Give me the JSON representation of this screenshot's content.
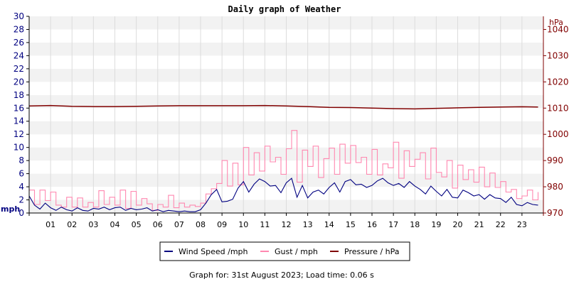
{
  "chart_data": {
    "type": "line",
    "title": "Daily graph of Weather",
    "left_axis": {
      "unit_label": "mph",
      "ylim": [
        0,
        30
      ],
      "ticks": [
        "0",
        "2",
        "4",
        "6",
        "8",
        "10",
        "12",
        "14",
        "16",
        "18",
        "20",
        "22",
        "24",
        "26",
        "28",
        "30"
      ],
      "color": "#000080"
    },
    "right_axis": {
      "unit_label": "hPa",
      "ylim": [
        970,
        1045
      ],
      "ticks": [
        "970",
        "980",
        "990",
        "1000",
        "1010",
        "1020",
        "1030",
        "1040"
      ],
      "color": "#800000"
    },
    "x_tick_labels": [
      "01",
      "02",
      "03",
      "04",
      "05",
      "06",
      "07",
      "08",
      "09",
      "10",
      "11",
      "12",
      "13",
      "14",
      "15",
      "16",
      "17",
      "18",
      "19",
      "20",
      "21",
      "22",
      "23"
    ],
    "xlim": [
      0,
      24
    ],
    "grid": true,
    "series": [
      {
        "name": "Wind Speed /mph",
        "axis": "left",
        "color": "#000080",
        "x": [
          0,
          0.25,
          0.5,
          0.75,
          1,
          1.25,
          1.5,
          1.75,
          2,
          2.25,
          2.5,
          2.75,
          3,
          3.25,
          3.5,
          3.75,
          4,
          4.25,
          4.5,
          4.75,
          5,
          5.25,
          5.5,
          5.75,
          6,
          6.25,
          6.5,
          6.75,
          7,
          7.25,
          7.5,
          7.75,
          8,
          8.25,
          8.5,
          8.75,
          9,
          9.25,
          9.5,
          9.75,
          10,
          10.25,
          10.5,
          10.75,
          11,
          11.25,
          11.5,
          11.75,
          12,
          12.25,
          12.5,
          12.75,
          13,
          13.25,
          13.5,
          13.75,
          14,
          14.25,
          14.5,
          14.75,
          15,
          15.25,
          15.5,
          15.75,
          16,
          16.25,
          16.5,
          16.75,
          17,
          17.25,
          17.5,
          17.75,
          18,
          18.25,
          18.5,
          18.75,
          19,
          19.25,
          19.5,
          19.75,
          20,
          20.25,
          20.5,
          20.75,
          21,
          21.25,
          21.5,
          21.75,
          22,
          22.25,
          22.5,
          22.75,
          23,
          23.25,
          23.5,
          23.75
        ],
        "values": [
          2.6,
          1.2,
          0.6,
          1.5,
          0.8,
          0.4,
          0.9,
          0.5,
          0.3,
          0.8,
          0.4,
          0.3,
          0.7,
          0.6,
          0.9,
          0.5,
          0.8,
          0.9,
          0.4,
          0.7,
          0.5,
          0.6,
          0.8,
          0.3,
          0.5,
          0.2,
          0.4,
          0.3,
          0.2,
          0.3,
          0.2,
          0.2,
          0.5,
          1.5,
          2.8,
          3.6,
          1.7,
          1.8,
          2.1,
          3.8,
          4.8,
          3.2,
          4.4,
          5.2,
          4.8,
          4.1,
          4.2,
          3.1,
          4.6,
          5.3,
          2.4,
          4.2,
          2.3,
          3.2,
          3.5,
          2.9,
          3.9,
          4.6,
          3.2,
          4.8,
          5.1,
          4.3,
          4.4,
          3.9,
          4.2,
          4.9,
          5.3,
          4.6,
          4.2,
          4.5,
          3.9,
          4.8,
          4.1,
          3.6,
          2.9,
          4.1,
          3.3,
          2.6,
          3.6,
          2.4,
          2.3,
          3.5,
          3.1,
          2.6,
          2.8,
          2.1,
          2.8,
          2.3,
          2.2,
          1.6,
          2.4,
          1.3,
          1.1,
          1.6,
          1.3,
          1.2
        ]
      },
      {
        "name": "Gust / mph",
        "axis": "left",
        "color": "#ff88b0",
        "x": [
          0,
          0.25,
          0.5,
          0.75,
          1,
          1.25,
          1.5,
          1.75,
          2,
          2.25,
          2.5,
          2.75,
          3,
          3.25,
          3.5,
          3.75,
          4,
          4.25,
          4.5,
          4.75,
          5,
          5.25,
          5.5,
          5.75,
          6,
          6.25,
          6.5,
          6.75,
          7,
          7.25,
          7.5,
          7.75,
          8,
          8.25,
          8.5,
          8.75,
          9,
          9.25,
          9.5,
          9.75,
          10,
          10.25,
          10.5,
          10.75,
          11,
          11.25,
          11.5,
          11.75,
          12,
          12.25,
          12.5,
          12.75,
          13,
          13.25,
          13.5,
          13.75,
          14,
          14.25,
          14.5,
          14.75,
          15,
          15.25,
          15.5,
          15.75,
          16,
          16.25,
          16.5,
          16.75,
          17,
          17.25,
          17.5,
          17.75,
          18,
          18.25,
          18.5,
          18.75,
          19,
          19.25,
          19.5,
          19.75,
          20,
          20.25,
          20.5,
          20.75,
          21,
          21.25,
          21.5,
          21.75,
          22,
          22.25,
          22.5,
          22.75,
          23,
          23.25,
          23.5,
          23.75
        ],
        "values": [
          3.5,
          1.3,
          3.5,
          1.9,
          3.2,
          1.2,
          0.9,
          2.4,
          0.9,
          2.3,
          0.9,
          1.6,
          0.9,
          3.4,
          1.3,
          2.4,
          1.2,
          3.5,
          0.7,
          3.3,
          1.2,
          2.2,
          1.4,
          0.4,
          1.3,
          0.9,
          2.7,
          0.8,
          1.5,
          0.9,
          1.2,
          1.0,
          1.5,
          2.9,
          3.7,
          4.5,
          8.0,
          4.1,
          7.6,
          4.3,
          10.0,
          5.8,
          9.2,
          6.4,
          10.2,
          7.8,
          8.5,
          5.9,
          9.8,
          12.6,
          4.7,
          9.6,
          7.1,
          10.2,
          5.4,
          8.3,
          9.9,
          5.9,
          10.5,
          7.6,
          10.3,
          7.7,
          8.5,
          5.9,
          9.7,
          5.8,
          7.5,
          6.9,
          10.8,
          5.3,
          9.5,
          7.1,
          8.2,
          9.2,
          5.2,
          9.9,
          6.2,
          5.5,
          8.0,
          3.8,
          7.3,
          5.1,
          6.6,
          4.7,
          7.0,
          4.0,
          6.1,
          3.9,
          4.8,
          3.2,
          3.6,
          2.2,
          2.6,
          3.5,
          2.0,
          3.2
        ]
      },
      {
        "name": "Pressure / hPa",
        "axis": "right",
        "color": "#800000",
        "x": [
          0,
          1,
          2,
          3,
          4,
          5,
          6,
          7,
          8,
          9,
          10,
          11,
          12,
          13,
          14,
          15,
          16,
          17,
          18,
          19,
          20,
          21,
          22,
          23,
          23.75
        ],
        "values": [
          1010.8,
          1011.0,
          1010.7,
          1010.6,
          1010.6,
          1010.7,
          1010.8,
          1010.9,
          1010.9,
          1010.9,
          1010.9,
          1011.0,
          1010.8,
          1010.6,
          1010.3,
          1010.2,
          1010.0,
          1009.8,
          1009.7,
          1009.9,
          1010.1,
          1010.3,
          1010.4,
          1010.5,
          1010.4
        ]
      }
    ]
  },
  "footer": {
    "text": "Graph for: 31st August 2023; Load time: 0.06 s"
  }
}
